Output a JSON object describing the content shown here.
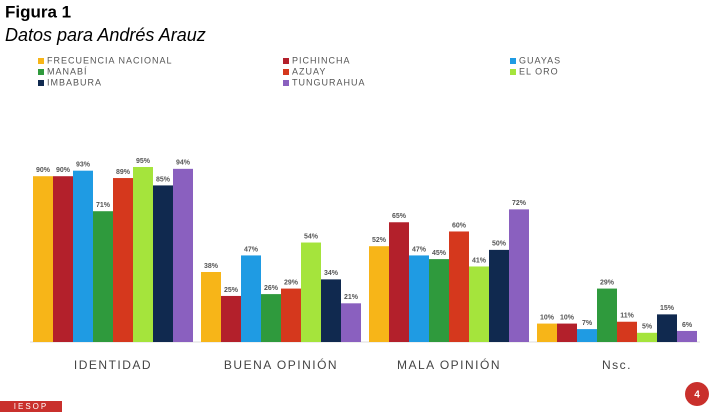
{
  "header": {
    "title": "Figura 1",
    "subtitle": "Datos para Andrés Arauz"
  },
  "chart_data": {
    "type": "bar",
    "categories": [
      "IDENTIDAD",
      "BUENA OPINIÓN",
      "MALA OPINIÓN",
      "Nsc."
    ],
    "series": [
      {
        "name": "FRECUENCIA NACIONAL",
        "color": "#f7b518",
        "values": [
          90,
          38,
          52,
          10
        ],
        "value_labels": [
          "90%",
          "38%",
          "52%",
          "10%"
        ]
      },
      {
        "name": "PICHINCHA",
        "color": "#b3202b",
        "values": [
          90,
          25,
          65,
          10
        ],
        "value_labels": [
          "90%",
          "25%",
          "65%",
          "10%"
        ]
      },
      {
        "name": "GUAYAS",
        "color": "#1f9be3",
        "values": [
          93,
          47,
          47,
          7
        ],
        "value_labels": [
          "93%",
          "47%",
          "47%",
          "7%"
        ]
      },
      {
        "name": "MANABÍ",
        "color": "#2f9a3d",
        "values": [
          71,
          26,
          45,
          29
        ],
        "value_labels": [
          "71%",
          "26%",
          "45%",
          "29%"
        ]
      },
      {
        "name": "AZUAY",
        "color": "#d5381d",
        "values": [
          89,
          29,
          60,
          11
        ],
        "value_labels": [
          "89%",
          "29%",
          "60%",
          "11%"
        ]
      },
      {
        "name": "EL ORO",
        "color": "#a5e43c",
        "values": [
          95,
          54,
          41,
          5
        ],
        "value_labels": [
          "95%",
          "54%",
          "41%",
          "5%"
        ]
      },
      {
        "name": "IMBABURA",
        "color": "#10294f",
        "values": [
          85,
          34,
          50,
          15
        ],
        "value_labels": [
          "85%",
          "34%",
          "50%",
          "15%"
        ]
      },
      {
        "name": "TUNGURAHUA",
        "color": "#8a60bf",
        "values": [
          94,
          21,
          72,
          6
        ],
        "value_labels": [
          "94%",
          "21%",
          "72%",
          "6%"
        ]
      }
    ]
  },
  "footer": {
    "logo": "IESOP",
    "page": "4"
  }
}
